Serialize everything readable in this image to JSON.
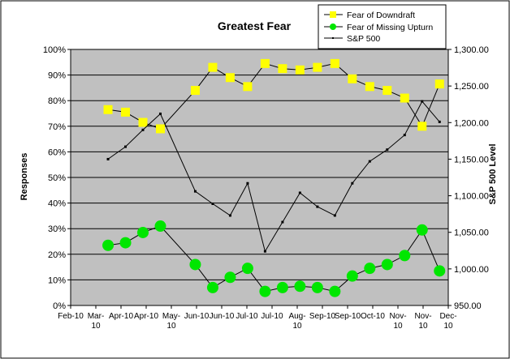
{
  "chart_data": {
    "type": "line",
    "title": "Greatest Fear",
    "xlabel": "",
    "ylabel": "Responses",
    "y2label": "S&P 500 Level",
    "ylim": [
      0,
      100
    ],
    "y2lim": [
      950,
      1300
    ],
    "xlim": [
      "2010-02-01",
      "2010-12-01"
    ],
    "x_tick_labels": [
      "Feb-10",
      "Mar-\n10",
      "Apr-10",
      "Apr-10",
      "May-\n10",
      "Jun-10",
      "Jun-10",
      "Jul-10",
      "Jul-10",
      "Aug-\n10",
      "Sep-10",
      "Sep-10",
      "Oct-10",
      "Nov-\n10",
      "Nov-\n10",
      "Dec-\n10"
    ],
    "y_tick_labels": [
      "0%",
      "10%",
      "20%",
      "30%",
      "40%",
      "50%",
      "60%",
      "70%",
      "80%",
      "90%",
      "100%"
    ],
    "y2_tick_labels": [
      "950.00",
      "1,000.00",
      "1,050.00",
      "1,100.00",
      "1,150.00",
      "1,200.00",
      "1,250.00",
      "1,300.00"
    ],
    "grid": true,
    "plot_background": "#c0c0c0",
    "legend_position": "top-right",
    "dates": [
      "2010-03-03",
      "2010-03-17",
      "2010-03-31",
      "2010-04-14",
      "2010-04-28",
      "2010-05-12",
      "2010-05-26",
      "2010-06-09",
      "2010-06-23",
      "2010-07-07",
      "2010-07-21",
      "2010-08-04",
      "2010-08-18",
      "2010-09-01",
      "2010-09-15",
      "2010-09-29",
      "2010-10-13",
      "2010-10-27",
      "2010-11-10",
      "2010-11-24"
    ],
    "series": [
      {
        "name": "Fear of Downdraft",
        "axis": "left",
        "marker": "square",
        "color": "#ffff00",
        "values": [
          76.5,
          75.5,
          71.5,
          69,
          null,
          84,
          93,
          89,
          85.5,
          94.5,
          92.5,
          92,
          93,
          94.5,
          88.5,
          85.5,
          84,
          81,
          70,
          86.5
        ]
      },
      {
        "name": "Fear of Missing Upturn",
        "axis": "left",
        "marker": "circle",
        "color": "#00e600",
        "values": [
          23.5,
          24.5,
          28.5,
          31,
          null,
          16,
          7,
          11,
          14.5,
          5.5,
          7,
          7.5,
          7,
          5.5,
          11.5,
          14.5,
          16,
          19.5,
          29.5,
          13.5
        ]
      },
      {
        "name": "S&P 500",
        "axis": "right",
        "marker": "dot",
        "color": "#000000",
        "values": [
          1150,
          1167,
          1190,
          1212,
          null,
          1106,
          1089,
          1073,
          1117,
          1024,
          1064,
          1104,
          1085,
          1073,
          1117,
          1147,
          1163,
          1183,
          1229,
          1201
        ]
      }
    ]
  }
}
